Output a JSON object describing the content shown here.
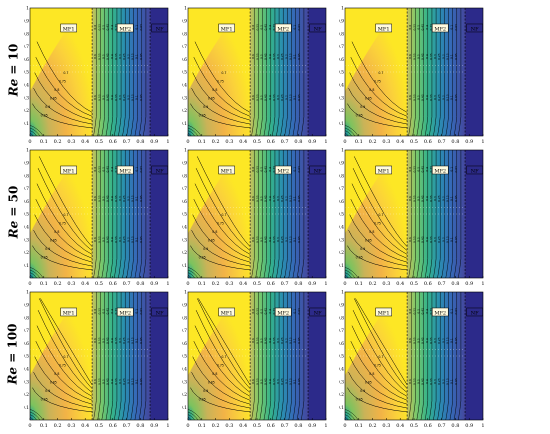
{
  "row_labels": [
    {
      "symbol": "Re",
      "eq": " = 10"
    },
    {
      "symbol": "Re",
      "eq": " = 50"
    },
    {
      "symbol": "Re",
      "eq": " = 100"
    }
  ],
  "colors": {
    "colormap": [
      "#fde725",
      "#f6b94a",
      "#d9a85a",
      "#a8c45a",
      "#5ec962",
      "#21a58b",
      "#2c84b0",
      "#3a5fb6",
      "#47479a",
      "#322d8b"
    ],
    "porous_region": "#2c2a8a",
    "contour_line": "#000000"
  },
  "chart_data": {
    "type": "contour",
    "layout": "3x3 grid of contour plots",
    "x_ticks": [
      "0",
      "0.1",
      "0.2",
      "0.3",
      "0.4",
      "0.5",
      "0.6",
      "0.7",
      "0.8",
      "0.9",
      "1"
    ],
    "y_ticks": [
      "0",
      "0.1",
      "0.2",
      "0.3",
      "0.4",
      "0.5",
      "0.6",
      "0.7",
      "0.8",
      "0.9",
      "1"
    ],
    "xlim": [
      0,
      1
    ],
    "ylim": [
      0,
      1
    ],
    "region_labels": [
      "MF1",
      "MF2",
      "NF"
    ],
    "region_boundaries_x": [
      0.45,
      0.87
    ],
    "contour_levels_left": [
      "0.95",
      "0.9",
      "0.85",
      "0.8",
      "0.75",
      "0.7"
    ],
    "contour_levels_right": [
      "0.6",
      "0.55",
      "0.5",
      "0.45",
      "0.4",
      "0.35",
      "0.3",
      "0.25",
      "0.2",
      "0.15",
      "0.1",
      "0.05"
    ],
    "panels_per_row": 3
  }
}
